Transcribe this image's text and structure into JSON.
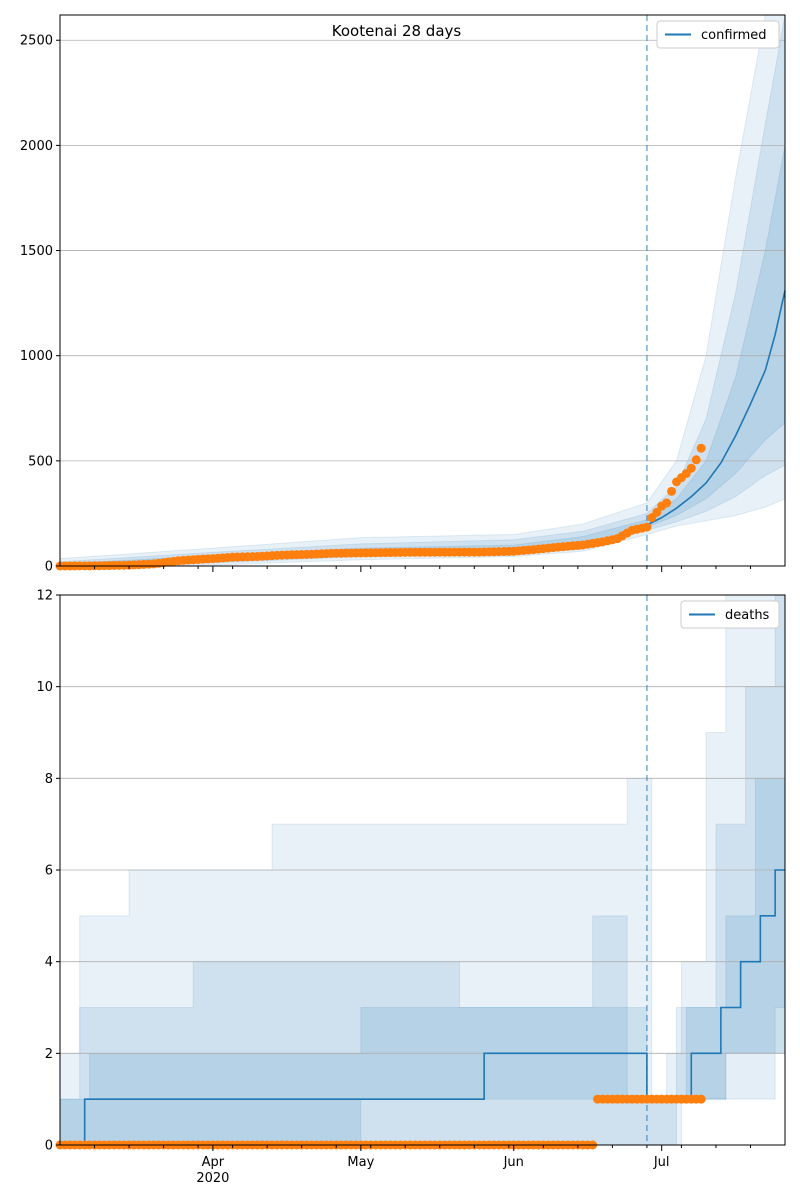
{
  "chart_data": [
    {
      "type": "line",
      "title": "Kootenai 28 days",
      "ylim": [
        0,
        2620
      ],
      "xlim": [
        "2020-03-01",
        "2020-07-26"
      ],
      "yticks": [
        0,
        500,
        1000,
        1500,
        2000,
        2500
      ],
      "xticks": [
        {
          "date": "2020-04-01",
          "label": "Apr",
          "sublabel": "2020"
        },
        {
          "date": "2020-05-01",
          "label": "May",
          "sublabel": ""
        },
        {
          "date": "2020-06-01",
          "label": "Jun",
          "sublabel": ""
        },
        {
          "date": "2020-07-01",
          "label": "Jul",
          "sublabel": ""
        }
      ],
      "grid": "y",
      "legend": {
        "position": "top-right",
        "entries": [
          "confirmed"
        ]
      },
      "forecast_start": "2020-06-28",
      "colors": {
        "model": "#1f77b4",
        "observed": "#ff7f0e",
        "band": "#1f77b4"
      },
      "series": [
        {
          "name": "confirmed",
          "kind": "line",
          "x": [
            "2020-06-28",
            "2020-07-01",
            "2020-07-04",
            "2020-07-07",
            "2020-07-10",
            "2020-07-13",
            "2020-07-16",
            "2020-07-19",
            "2020-07-22",
            "2020-07-24",
            "2020-07-26"
          ],
          "y": [
            195,
            230,
            275,
            330,
            395,
            490,
            620,
            770,
            930,
            1100,
            1310
          ]
        },
        {
          "name": "observed",
          "kind": "scatter",
          "x": [
            "2020-03-01",
            "2020-03-08",
            "2020-03-15",
            "2020-03-20",
            "2020-03-25",
            "2020-03-28",
            "2020-04-01",
            "2020-04-05",
            "2020-04-10",
            "2020-04-15",
            "2020-04-20",
            "2020-04-25",
            "2020-05-01",
            "2020-05-10",
            "2020-05-20",
            "2020-05-25",
            "2020-06-01",
            "2020-06-05",
            "2020-06-10",
            "2020-06-15",
            "2020-06-19",
            "2020-06-22",
            "2020-06-25",
            "2020-06-28",
            "2020-06-29",
            "2020-06-30",
            "2020-07-01",
            "2020-07-02",
            "2020-07-03",
            "2020-07-04",
            "2020-07-05",
            "2020-07-06",
            "2020-07-07",
            "2020-07-08",
            "2020-07-09"
          ],
          "y": [
            0,
            1,
            4,
            10,
            25,
            30,
            35,
            42,
            45,
            52,
            55,
            60,
            62,
            65,
            66,
            66,
            70,
            78,
            90,
            100,
            115,
            130,
            170,
            185,
            230,
            255,
            285,
            300,
            355,
            400,
            420,
            440,
            465,
            505,
            560
          ]
        }
      ],
      "bands": [
        {
          "x": [
            "2020-03-01",
            "2020-04-01",
            "2020-05-01",
            "2020-06-01",
            "2020-06-15",
            "2020-06-28",
            "2020-07-04",
            "2020-07-10",
            "2020-07-16",
            "2020-07-22",
            "2020-07-26"
          ],
          "lo": [
            0,
            5,
            30,
            45,
            70,
            150,
            190,
            215,
            240,
            280,
            320
          ],
          "hi": [
            35,
            85,
            135,
            150,
            200,
            300,
            500,
            1000,
            1850,
            2620,
            2620
          ]
        },
        {
          "x": [
            "2020-03-01",
            "2020-04-01",
            "2020-05-01",
            "2020-06-01",
            "2020-06-15",
            "2020-06-28",
            "2020-07-04",
            "2020-07-10",
            "2020-07-16",
            "2020-07-22",
            "2020-07-26"
          ],
          "lo": [
            0,
            15,
            45,
            55,
            80,
            170,
            210,
            260,
            330,
            430,
            480
          ],
          "hi": [
            20,
            65,
            105,
            125,
            165,
            250,
            380,
            700,
            1300,
            2100,
            2620
          ]
        },
        {
          "x": [
            "2020-03-01",
            "2020-04-01",
            "2020-05-01",
            "2020-06-01",
            "2020-06-15",
            "2020-06-28",
            "2020-07-04",
            "2020-07-10",
            "2020-07-16",
            "2020-07-22",
            "2020-07-26"
          ],
          "lo": [
            0,
            25,
            55,
            65,
            95,
            185,
            240,
            320,
            440,
            600,
            680
          ],
          "hi": [
            10,
            50,
            85,
            100,
            140,
            220,
            320,
            500,
            900,
            1500,
            2000
          ]
        }
      ]
    },
    {
      "type": "line",
      "ylim": [
        0,
        12
      ],
      "xlim": [
        "2020-03-01",
        "2020-07-26"
      ],
      "yticks": [
        0,
        2,
        4,
        6,
        8,
        10,
        12
      ],
      "xticks": [
        {
          "date": "2020-04-01",
          "label": "Apr",
          "sublabel": "2020"
        },
        {
          "date": "2020-05-01",
          "label": "May",
          "sublabel": ""
        },
        {
          "date": "2020-06-01",
          "label": "Jun",
          "sublabel": ""
        },
        {
          "date": "2020-07-01",
          "label": "Jul",
          "sublabel": ""
        }
      ],
      "grid": "y",
      "legend": {
        "position": "top-right",
        "entries": [
          "deaths"
        ]
      },
      "forecast_start": "2020-06-28",
      "colors": {
        "model": "#1f77b4",
        "observed": "#ff7f0e",
        "band": "#1f77b4"
      },
      "series": [
        {
          "name": "deaths",
          "kind": "step",
          "x": [
            "2020-03-01",
            "2020-03-06",
            "2020-05-26",
            "2020-06-28",
            "2020-07-07",
            "2020-07-13",
            "2020-07-17",
            "2020-07-21",
            "2020-07-24",
            "2020-07-26"
          ],
          "y": [
            0,
            1,
            2,
            1,
            2,
            3,
            4,
            5,
            6,
            6
          ]
        },
        {
          "name": "observed",
          "kind": "scatter",
          "segments": [
            {
              "from": "2020-03-01",
              "to": "2020-06-17",
              "value": 0
            },
            {
              "from": "2020-06-18",
              "to": "2020-07-09",
              "value": 1
            }
          ]
        }
      ],
      "bands": [
        {
          "steps": [
            [
              "2020-03-01",
              2,
              0
            ],
            [
              "2020-03-05",
              5,
              0
            ],
            [
              "2020-03-15",
              6,
              0
            ],
            [
              "2020-04-13",
              7,
              0
            ],
            [
              "2020-06-24",
              8,
              0
            ],
            [
              "2020-06-29",
              1,
              0
            ],
            [
              "2020-07-02",
              2,
              0
            ],
            [
              "2020-07-05",
              4,
              1
            ],
            [
              "2020-07-10",
              9,
              1
            ],
            [
              "2020-07-14",
              12,
              2
            ],
            [
              "2020-07-26",
              12,
              2
            ]
          ]
        },
        {
          "steps": [
            [
              "2020-03-01",
              1,
              0
            ],
            [
              "2020-03-05",
              3,
              0
            ],
            [
              "2020-03-28",
              4,
              0
            ],
            [
              "2020-05-21",
              3,
              0
            ],
            [
              "2020-06-17",
              5,
              0
            ],
            [
              "2020-06-24",
              1,
              0
            ],
            [
              "2020-07-04",
              3,
              1
            ],
            [
              "2020-07-12",
              7,
              1
            ],
            [
              "2020-07-18",
              10,
              1
            ],
            [
              "2020-07-24",
              12,
              3
            ],
            [
              "2020-07-26",
              12,
              3
            ]
          ]
        },
        {
          "steps": [
            [
              "2020-03-01",
              1,
              0
            ],
            [
              "2020-03-07",
              2,
              0
            ],
            [
              "2020-05-01",
              3,
              1
            ],
            [
              "2020-06-28",
              1,
              1
            ],
            [
              "2020-07-06",
              3,
              1
            ],
            [
              "2020-07-14",
              5,
              2
            ],
            [
              "2020-07-20",
              8,
              2
            ],
            [
              "2020-07-26",
              12,
              2
            ]
          ]
        }
      ]
    }
  ]
}
